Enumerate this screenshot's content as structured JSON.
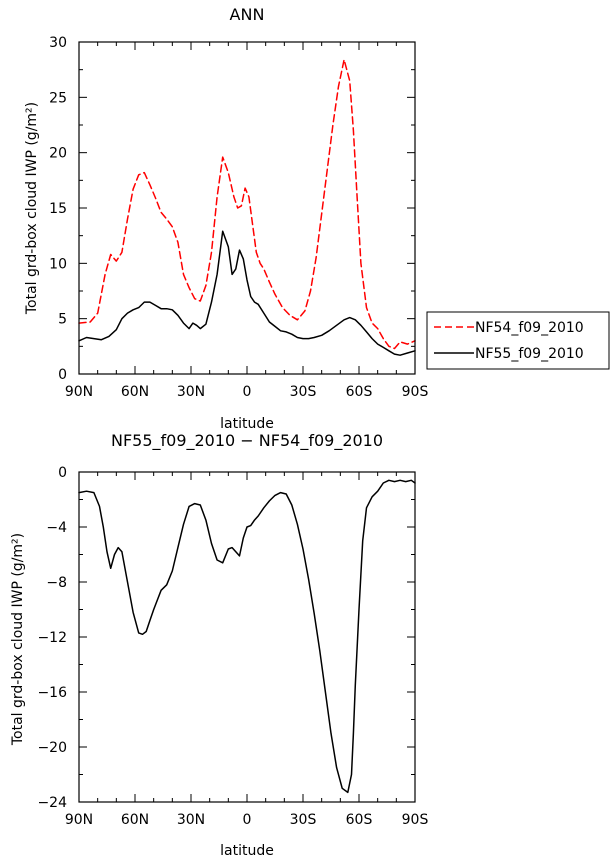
{
  "chart_data": [
    {
      "type": "line",
      "title": "ANN",
      "xlabel": "latitude",
      "ylabel": "Total grd-box cloud IWP (g/m²)",
      "x_tick_labels": [
        "90N",
        "60N",
        "30N",
        "0",
        "30S",
        "60S",
        "90S"
      ],
      "x_tick_values": [
        90,
        60,
        30,
        0,
        -30,
        -60,
        -90
      ],
      "xlim": [
        90,
        -90
      ],
      "ylim": [
        0,
        30
      ],
      "y_tick_values": [
        0,
        5,
        10,
        15,
        20,
        25,
        30
      ],
      "legend_position": "right",
      "grid": false,
      "series": [
        {
          "name": "NF54_f09_2010",
          "color": "#ff0000",
          "dash": "dashed",
          "x": [
            90,
            84,
            80,
            76,
            73,
            70,
            67,
            64,
            61,
            58,
            55,
            52,
            49,
            46,
            43,
            40,
            37,
            34,
            31,
            28,
            25,
            22,
            19,
            16,
            13,
            10,
            7,
            5,
            3,
            1,
            -1,
            -3,
            -5,
            -7,
            -9,
            -12,
            -15,
            -19,
            -23,
            -27,
            -31,
            -34,
            -37,
            -40,
            -43,
            -46,
            -49,
            -52,
            -55,
            -57,
            -59,
            -61,
            -64,
            -67,
            -70,
            -73,
            -76,
            -79,
            -82,
            -86,
            -90
          ],
          "values": [
            4.6,
            4.7,
            5.5,
            9.0,
            10.8,
            10.2,
            11.0,
            14.0,
            16.7,
            18.0,
            18.2,
            17.1,
            15.9,
            14.6,
            14.0,
            13.3,
            11.9,
            9.0,
            7.8,
            6.8,
            6.6,
            8.0,
            11.0,
            16.0,
            19.6,
            18.2,
            16.0,
            15.0,
            15.2,
            16.8,
            16.0,
            13.5,
            11.0,
            10.0,
            9.5,
            8.3,
            7.2,
            6.0,
            5.3,
            4.9,
            5.7,
            7.5,
            10.5,
            14.5,
            18.5,
            22.5,
            26.0,
            28.4,
            26.5,
            22.0,
            16.0,
            10.0,
            6.0,
            4.6,
            4.1,
            3.2,
            2.5,
            2.3,
            2.9,
            2.7,
            3.0
          ]
        },
        {
          "name": "NF55_f09_2010",
          "color": "#000000",
          "dash": "solid",
          "x": [
            90,
            86,
            82,
            78,
            74,
            70,
            67,
            64,
            61,
            58,
            55,
            52,
            49,
            46,
            43,
            40,
            37,
            34,
            31,
            29,
            27,
            25,
            22,
            19,
            16,
            13,
            10,
            8,
            6,
            4,
            2,
            0,
            -2,
            -4,
            -6,
            -9,
            -12,
            -15,
            -18,
            -21,
            -24,
            -27,
            -30,
            -33,
            -36,
            -40,
            -44,
            -48,
            -52,
            -55,
            -58,
            -61,
            -64,
            -67,
            -70,
            -73,
            -76,
            -79,
            -82,
            -86,
            -90
          ],
          "values": [
            3.0,
            3.3,
            3.2,
            3.1,
            3.4,
            4.0,
            5.0,
            5.5,
            5.8,
            6.0,
            6.5,
            6.5,
            6.2,
            5.9,
            5.9,
            5.8,
            5.3,
            4.6,
            4.1,
            4.6,
            4.4,
            4.1,
            4.5,
            6.5,
            9.0,
            12.9,
            11.5,
            9.0,
            9.5,
            11.2,
            10.4,
            8.5,
            7.0,
            6.5,
            6.3,
            5.5,
            4.7,
            4.3,
            3.9,
            3.8,
            3.6,
            3.3,
            3.2,
            3.2,
            3.3,
            3.5,
            3.9,
            4.4,
            4.9,
            5.1,
            4.9,
            4.4,
            3.8,
            3.2,
            2.7,
            2.4,
            2.1,
            1.8,
            1.7,
            1.9,
            2.1
          ]
        }
      ]
    },
    {
      "type": "line",
      "title": "NF55_f09_2010 − NF54_f09_2010",
      "xlabel": "latitude",
      "ylabel": "Total grd-box cloud IWP (g/m²)",
      "x_tick_labels": [
        "90N",
        "60N",
        "30N",
        "0",
        "30S",
        "60S",
        "90S"
      ],
      "x_tick_values": [
        90,
        60,
        30,
        0,
        -30,
        -60,
        -90
      ],
      "xlim": [
        90,
        -90
      ],
      "ylim": [
        -24,
        0
      ],
      "y_tick_labels": [
        "0",
        "−4",
        "−8",
        "−12",
        "−16",
        "−20",
        "−24"
      ],
      "y_tick_values": [
        0,
        -4,
        -8,
        -12,
        -16,
        -20,
        -24
      ],
      "grid": false,
      "series": [
        {
          "color": "#000000",
          "dash": "solid",
          "x": [
            90,
            86,
            82,
            79,
            77,
            75,
            73,
            71,
            69,
            67,
            64,
            61,
            58,
            56,
            54,
            52,
            50,
            48,
            46,
            43,
            40,
            37,
            34,
            31,
            28,
            25,
            22,
            19,
            16,
            13,
            10,
            8,
            6,
            4,
            2,
            0,
            -2,
            -4,
            -6,
            -9,
            -12,
            -15,
            -18,
            -21,
            -24,
            -27,
            -30,
            -33,
            -36,
            -39,
            -42,
            -45,
            -48,
            -51,
            -54,
            -56,
            -57,
            -58,
            -60,
            -62,
            -64,
            -67,
            -70,
            -73,
            -76,
            -79,
            -82,
            -85,
            -88,
            -90
          ],
          "values": [
            -1.5,
            -1.4,
            -1.5,
            -2.5,
            -4.0,
            -5.8,
            -7.0,
            -6.0,
            -5.5,
            -5.8,
            -8.0,
            -10.2,
            -11.7,
            -11.8,
            -11.6,
            -10.8,
            -10.0,
            -9.3,
            -8.6,
            -8.2,
            -7.2,
            -5.5,
            -3.8,
            -2.5,
            -2.3,
            -2.4,
            -3.5,
            -5.2,
            -6.4,
            -6.6,
            -5.6,
            -5.5,
            -5.8,
            -6.1,
            -4.8,
            -4.0,
            -3.9,
            -3.5,
            -3.2,
            -2.6,
            -2.1,
            -1.7,
            -1.5,
            -1.6,
            -2.4,
            -3.8,
            -5.6,
            -7.8,
            -10.3,
            -13.0,
            -16.0,
            -19.0,
            -21.5,
            -23.0,
            -23.3,
            -22.0,
            -19.0,
            -15.5,
            -10.0,
            -5.0,
            -2.6,
            -1.8,
            -1.4,
            -0.8,
            -0.6,
            -0.7,
            -0.6,
            -0.7,
            -0.6,
            -0.8
          ]
        }
      ]
    }
  ]
}
